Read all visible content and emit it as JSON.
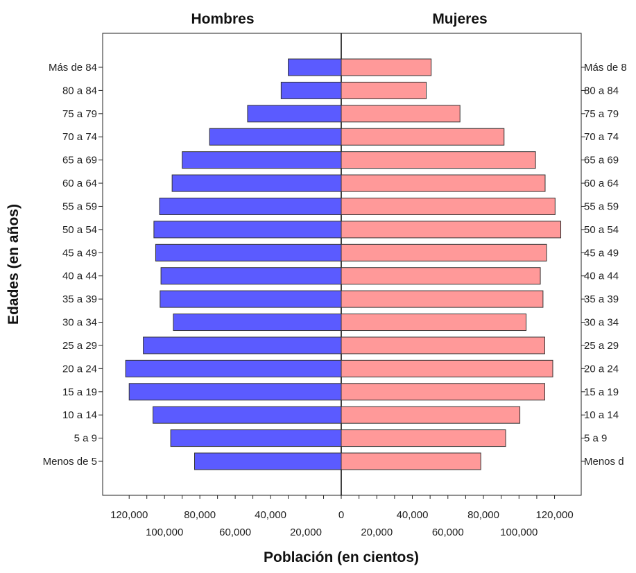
{
  "chart_data": {
    "type": "bar",
    "orientation": "horizontal",
    "subtype": "population-pyramid",
    "title": "",
    "xlabel": "Población (en cientos)",
    "ylabel": "Edades (en años)",
    "panel_titles": {
      "left": "Hombres",
      "right": "Mujeres"
    },
    "categories": [
      "Menos de 5",
      "5 a 9",
      "10 a 14",
      "15 a 19",
      "20 a 24",
      "25 a 29",
      "30 a 34",
      "35 a 39",
      "40 a 44",
      "45 a 49",
      "50 a 54",
      "55 a 59",
      "60 a 64",
      "65 a 69",
      "70 a 74",
      "75 a 79",
      "80 a 84",
      "Más de 84"
    ],
    "right_tick_labels": [
      "Menos d",
      "5 a 9",
      "10 a 14",
      "15 a 19",
      "20 a 24",
      "25 a 29",
      "30 a 34",
      "35 a 39",
      "40 a 44",
      "45 a 49",
      "50 a 54",
      "55 a 59",
      "60 a 64",
      "65 a 69",
      "70 a 74",
      "75 a 79",
      "80 a 84",
      "Más de 8"
    ],
    "series": [
      {
        "name": "Hombres",
        "side": "left",
        "color": "#5b5bff",
        "values": [
          83000,
          96500,
          106500,
          120000,
          122000,
          112000,
          95000,
          102500,
          102000,
          105000,
          106000,
          102800,
          95700,
          90000,
          74500,
          53000,
          34000,
          30000
        ]
      },
      {
        "name": "Mujeres",
        "side": "right",
        "color": "#ff9999",
        "values": [
          78500,
          92500,
          100500,
          114500,
          119000,
          114500,
          104000,
          113500,
          112000,
          115500,
          123500,
          120300,
          114700,
          109300,
          91600,
          66800,
          47800,
          50600
        ]
      }
    ],
    "xlim": [
      0,
      135000
    ],
    "x_ticks_upper": [
      "120,000",
      "80,000",
      "40,000",
      "0",
      "40,000",
      "80,000",
      "120,000"
    ],
    "x_ticks_lower": [
      "100,000",
      "60,000",
      "20,000",
      "20,000",
      "60,000",
      "100,000"
    ],
    "grid": false,
    "legend": "none"
  }
}
